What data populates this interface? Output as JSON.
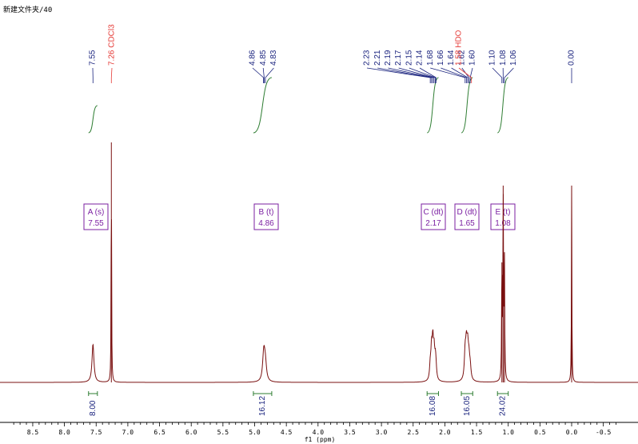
{
  "window_title": "新建文件夹/40",
  "chart_data": {
    "type": "line",
    "title": "",
    "xlabel": "f1 (ppm)",
    "ylabel": "",
    "xlim": [
      8.85,
      -0.75
    ],
    "x_reversed": true,
    "x_ticks": [
      8.5,
      8.0,
      7.5,
      7.0,
      6.5,
      6.0,
      5.5,
      5.0,
      4.5,
      4.0,
      3.5,
      3.0,
      2.5,
      2.0,
      1.5,
      1.0,
      0.5,
      0.0,
      -0.5
    ],
    "x_tick_labels": [
      "8.5",
      "8.0",
      "7.5",
      "7.0",
      "6.5",
      "6.0",
      "5.5",
      "5.0",
      "4.5",
      "4.0",
      "3.5",
      "3.0",
      "2.5",
      "2.0",
      "1.5",
      "1.0",
      "0.5",
      "0.0",
      "-0.5"
    ],
    "colors": {
      "spectrum": "#7a1010",
      "peak_label": "#1a237e",
      "solvent_label": "#e53935",
      "integral": "#2e7d32",
      "multiplet": "#7b1fa2",
      "axis": "#000000"
    },
    "peak_groups": [
      {
        "labels": [
          "7.55"
        ],
        "ppm": [
          7.55
        ],
        "color": "blue"
      },
      {
        "labels": [
          "7.26 CDCl3"
        ],
        "ppm": [
          7.26
        ],
        "color": "red"
      },
      {
        "labels": [
          "4.86",
          "4.85",
          "4.83"
        ],
        "ppm": [
          4.86,
          4.85,
          4.83
        ],
        "color": "blue"
      },
      {
        "labels": [
          "2.23",
          "2.21",
          "2.19",
          "2.17",
          "2.15",
          "2.14",
          "1.68",
          "1.66",
          "1.64",
          "1.62",
          "1.60"
        ],
        "ppm": [
          2.23,
          2.21,
          2.19,
          2.17,
          2.15,
          2.14,
          1.68,
          1.66,
          1.64,
          1.62,
          1.6
        ],
        "color": "blue"
      },
      {
        "labels": [
          "1.58 HDO"
        ],
        "ppm": [
          1.58
        ],
        "color": "red"
      },
      {
        "labels": [
          "1.10",
          "1.08",
          "1.06"
        ],
        "ppm": [
          1.1,
          1.08,
          1.06
        ],
        "color": "blue"
      },
      {
        "labels": [
          "0.00"
        ],
        "ppm": [
          0.0
        ],
        "color": "blue"
      }
    ],
    "multiplets": [
      {
        "name": "A",
        "type": "s",
        "label": "A (s)",
        "value": "7.55",
        "ppm": 7.55
      },
      {
        "name": "B",
        "type": "t",
        "label": "B (t)",
        "value": "4.86",
        "ppm": 4.86
      },
      {
        "name": "C",
        "type": "dt",
        "label": "C (dt)",
        "value": "2.17",
        "ppm": 2.17
      },
      {
        "name": "D",
        "type": "dt",
        "label": "D (dt)",
        "value": "1.65",
        "ppm": 1.65
      },
      {
        "name": "E",
        "type": "t",
        "label": "E (t)",
        "value": "1.08",
        "ppm": 1.08
      }
    ],
    "integrals": [
      {
        "label": "8.00",
        "value": 8.0,
        "from": 7.62,
        "to": 7.48
      },
      {
        "label": "16.12",
        "value": 16.12,
        "from": 5.02,
        "to": 4.73
      },
      {
        "label": "16.08",
        "value": 16.08,
        "from": 2.28,
        "to": 2.1
      },
      {
        "label": "16.05",
        "value": 16.05,
        "from": 1.74,
        "to": 1.56
      },
      {
        "label": "24.02",
        "value": 24.02,
        "from": 1.17,
        "to": 1.0
      }
    ],
    "signals": [
      {
        "ppm": 7.55,
        "height": 0.16,
        "width": 0.018
      },
      {
        "ppm": 7.26,
        "height": 1.0,
        "width": 0.004
      },
      {
        "ppm": 4.86,
        "height": 0.065,
        "width": 0.02
      },
      {
        "ppm": 4.85,
        "height": 0.07,
        "width": 0.02
      },
      {
        "ppm": 4.83,
        "height": 0.065,
        "width": 0.02
      },
      {
        "ppm": 2.23,
        "height": 0.06,
        "width": 0.012
      },
      {
        "ppm": 2.21,
        "height": 0.12,
        "width": 0.012
      },
      {
        "ppm": 2.19,
        "height": 0.15,
        "width": 0.012
      },
      {
        "ppm": 2.17,
        "height": 0.11,
        "width": 0.012
      },
      {
        "ppm": 2.15,
        "height": 0.07,
        "width": 0.012
      },
      {
        "ppm": 2.14,
        "height": 0.04,
        "width": 0.012
      },
      {
        "ppm": 1.68,
        "height": 0.11,
        "width": 0.014
      },
      {
        "ppm": 1.66,
        "height": 0.13,
        "width": 0.014
      },
      {
        "ppm": 1.64,
        "height": 0.12,
        "width": 0.014
      },
      {
        "ppm": 1.62,
        "height": 0.08,
        "width": 0.014
      },
      {
        "ppm": 1.6,
        "height": 0.05,
        "width": 0.014
      },
      {
        "ppm": 1.1,
        "height": 0.5,
        "width": 0.005
      },
      {
        "ppm": 1.08,
        "height": 0.82,
        "width": 0.005
      },
      {
        "ppm": 1.06,
        "height": 0.5,
        "width": 0.005
      },
      {
        "ppm": 0.0,
        "height": 0.82,
        "width": 0.004
      }
    ]
  }
}
